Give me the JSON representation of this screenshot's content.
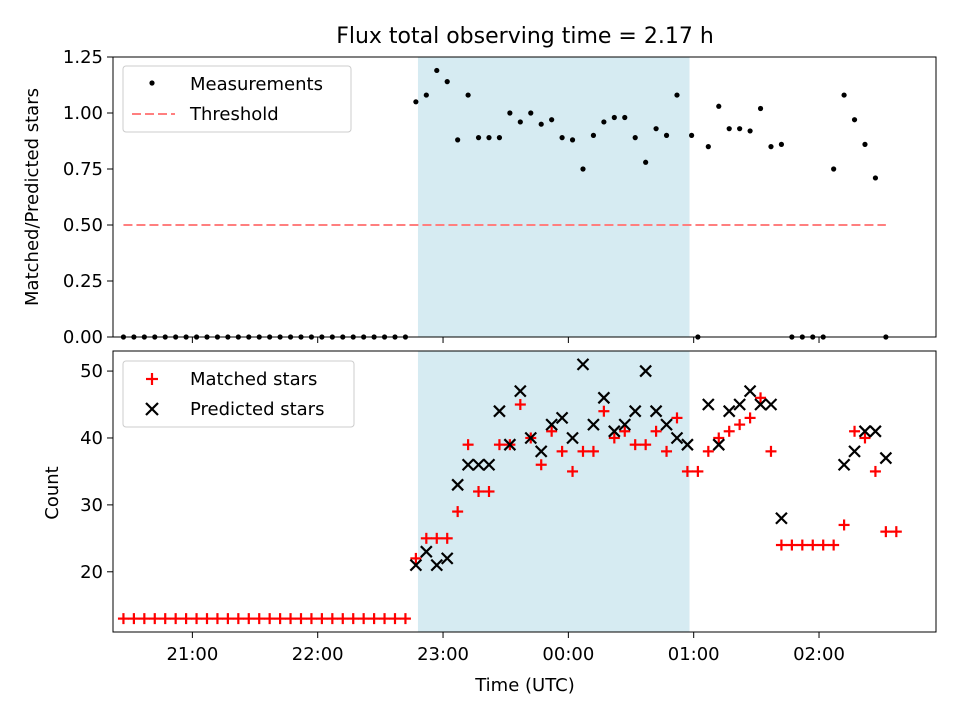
{
  "chart_data": [
    {
      "type": "scatter",
      "title": "Flux total observing time = 2.17 h",
      "xlabel": "",
      "ylabel": "Matched/Predicted stars",
      "x_axis": "time_utc",
      "xlim": [
        "20:22",
        "02:56"
      ],
      "ylim": [
        0,
        1.25
      ],
      "yticks": [
        "0.00",
        "0.25",
        "0.50",
        "0.75",
        "1.00",
        "1.25"
      ],
      "shaded_span": {
        "start": "22:48",
        "end": "00:58",
        "color": "#add8e6"
      },
      "legend": {
        "placement": "top-left",
        "entries": [
          "Measurements",
          "Threshold"
        ]
      },
      "series": [
        {
          "name": "Measurements",
          "style": "dots",
          "color": "#000000",
          "points": [
            [
              "20:27",
              0
            ],
            [
              "20:32",
              0
            ],
            [
              "20:37",
              0
            ],
            [
              "20:42",
              0
            ],
            [
              "20:47",
              0
            ],
            [
              "20:52",
              0
            ],
            [
              "20:57",
              0
            ],
            [
              "21:02",
              0
            ],
            [
              "21:07",
              0
            ],
            [
              "21:12",
              0
            ],
            [
              "21:17",
              0
            ],
            [
              "21:22",
              0
            ],
            [
              "21:27",
              0
            ],
            [
              "21:32",
              0
            ],
            [
              "21:37",
              0
            ],
            [
              "21:42",
              0
            ],
            [
              "21:47",
              0
            ],
            [
              "21:52",
              0
            ],
            [
              "21:57",
              0
            ],
            [
              "22:02",
              0
            ],
            [
              "22:07",
              0
            ],
            [
              "22:12",
              0
            ],
            [
              "22:17",
              0
            ],
            [
              "22:22",
              0
            ],
            [
              "22:27",
              0
            ],
            [
              "22:32",
              0
            ],
            [
              "22:37",
              0
            ],
            [
              "22:42",
              0
            ],
            [
              "22:47",
              1.05
            ],
            [
              "22:52",
              1.08
            ],
            [
              "22:57",
              1.19
            ],
            [
              "23:02",
              1.14
            ],
            [
              "23:07",
              0.88
            ],
            [
              "23:12",
              1.08
            ],
            [
              "23:17",
              0.89
            ],
            [
              "23:22",
              0.89
            ],
            [
              "23:27",
              0.89
            ],
            [
              "23:32",
              1.0
            ],
            [
              "23:37",
              0.96
            ],
            [
              "23:42",
              1.0
            ],
            [
              "23:47",
              0.95
            ],
            [
              "23:52",
              0.97
            ],
            [
              "23:57",
              0.89
            ],
            [
              "00:02",
              0.88
            ],
            [
              "00:07",
              0.75
            ],
            [
              "00:12",
              0.9
            ],
            [
              "00:17",
              0.96
            ],
            [
              "00:22",
              0.98
            ],
            [
              "00:27",
              0.98
            ],
            [
              "00:32",
              0.89
            ],
            [
              "00:37",
              0.78
            ],
            [
              "00:42",
              0.93
            ],
            [
              "00:47",
              0.9
            ],
            [
              "00:52",
              1.08
            ],
            [
              "00:59",
              0.9
            ],
            [
              "01:02",
              0
            ],
            [
              "01:07",
              0.85
            ],
            [
              "01:12",
              1.03
            ],
            [
              "01:17",
              0.93
            ],
            [
              "01:22",
              0.93
            ],
            [
              "01:27",
              0.92
            ],
            [
              "01:32",
              1.02
            ],
            [
              "01:37",
              0.85
            ],
            [
              "01:42",
              0.86
            ],
            [
              "01:47",
              0
            ],
            [
              "01:52",
              0
            ],
            [
              "01:57",
              0
            ],
            [
              "02:02",
              0
            ],
            [
              "02:07",
              0.75
            ],
            [
              "02:12",
              1.08
            ],
            [
              "02:17",
              0.97
            ],
            [
              "02:22",
              0.86
            ],
            [
              "02:27",
              0.71
            ],
            [
              "02:32",
              0
            ]
          ]
        },
        {
          "name": "Threshold",
          "style": "dashed-line",
          "color": "#ff7f7f",
          "points": [
            [
              "20:27",
              0.5
            ],
            [
              "02:32",
              0.5
            ]
          ]
        }
      ]
    },
    {
      "type": "scatter",
      "title": "",
      "xlabel": "Time (UTC)",
      "ylabel": "Count",
      "x_axis": "time_utc",
      "xlim": [
        "20:22",
        "02:56"
      ],
      "ylim": [
        11,
        53
      ],
      "yticks": [
        "20",
        "30",
        "40",
        "50"
      ],
      "xticks": [
        "21:00",
        "22:00",
        "23:00",
        "00:00",
        "01:00",
        "02:00"
      ],
      "shaded_span": {
        "start": "22:48",
        "end": "00:58",
        "color": "#add8e6"
      },
      "legend": {
        "placement": "top-left",
        "entries": [
          "Matched stars",
          "Predicted stars"
        ]
      },
      "series": [
        {
          "name": "Matched stars",
          "marker": "plus",
          "color": "#ff0000",
          "points": [
            [
              "20:27",
              13
            ],
            [
              "20:32",
              13
            ],
            [
              "20:37",
              13
            ],
            [
              "20:42",
              13
            ],
            [
              "20:47",
              13
            ],
            [
              "20:52",
              13
            ],
            [
              "20:57",
              13
            ],
            [
              "21:02",
              13
            ],
            [
              "21:07",
              13
            ],
            [
              "21:12",
              13
            ],
            [
              "21:17",
              13
            ],
            [
              "21:22",
              13
            ],
            [
              "21:27",
              13
            ],
            [
              "21:32",
              13
            ],
            [
              "21:37",
              13
            ],
            [
              "21:42",
              13
            ],
            [
              "21:47",
              13
            ],
            [
              "21:52",
              13
            ],
            [
              "21:57",
              13
            ],
            [
              "22:02",
              13
            ],
            [
              "22:07",
              13
            ],
            [
              "22:12",
              13
            ],
            [
              "22:17",
              13
            ],
            [
              "22:22",
              13
            ],
            [
              "22:27",
              13
            ],
            [
              "22:32",
              13
            ],
            [
              "22:37",
              13
            ],
            [
              "22:42",
              13
            ],
            [
              "22:47",
              22
            ],
            [
              "22:52",
              25
            ],
            [
              "22:57",
              25
            ],
            [
              "23:02",
              25
            ],
            [
              "23:07",
              29
            ],
            [
              "23:12",
              39
            ],
            [
              "23:17",
              32
            ],
            [
              "23:22",
              32
            ],
            [
              "23:27",
              39
            ],
            [
              "23:32",
              39
            ],
            [
              "23:37",
              45
            ],
            [
              "23:42",
              40
            ],
            [
              "23:47",
              36
            ],
            [
              "23:52",
              41
            ],
            [
              "23:57",
              38
            ],
            [
              "00:02",
              35
            ],
            [
              "00:07",
              38
            ],
            [
              "00:12",
              38
            ],
            [
              "00:17",
              44
            ],
            [
              "00:22",
              40
            ],
            [
              "00:27",
              41
            ],
            [
              "00:32",
              39
            ],
            [
              "00:37",
              39
            ],
            [
              "00:42",
              41
            ],
            [
              "00:47",
              38
            ],
            [
              "00:52",
              43
            ],
            [
              "00:57",
              35
            ],
            [
              "01:02",
              35
            ],
            [
              "01:07",
              38
            ],
            [
              "01:12",
              40
            ],
            [
              "01:17",
              41
            ],
            [
              "01:22",
              42
            ],
            [
              "01:27",
              43
            ],
            [
              "01:32",
              46
            ],
            [
              "01:37",
              38
            ],
            [
              "01:42",
              24
            ],
            [
              "01:47",
              24
            ],
            [
              "01:52",
              24
            ],
            [
              "01:57",
              24
            ],
            [
              "02:02",
              24
            ],
            [
              "02:07",
              24
            ],
            [
              "02:12",
              27
            ],
            [
              "02:17",
              41
            ],
            [
              "02:22",
              40
            ],
            [
              "02:27",
              35
            ],
            [
              "02:32",
              26
            ],
            [
              "02:37",
              26
            ]
          ]
        },
        {
          "name": "Predicted stars",
          "marker": "x",
          "color": "#000000",
          "points": [
            [
              "22:47",
              21
            ],
            [
              "22:52",
              23
            ],
            [
              "22:57",
              21
            ],
            [
              "23:02",
              22
            ],
            [
              "23:07",
              33
            ],
            [
              "23:12",
              36
            ],
            [
              "23:17",
              36
            ],
            [
              "23:22",
              36
            ],
            [
              "23:27",
              44
            ],
            [
              "23:32",
              39
            ],
            [
              "23:37",
              47
            ],
            [
              "23:42",
              40
            ],
            [
              "23:47",
              38
            ],
            [
              "23:52",
              42
            ],
            [
              "23:57",
              43
            ],
            [
              "00:02",
              40
            ],
            [
              "00:07",
              51
            ],
            [
              "00:12",
              42
            ],
            [
              "00:17",
              46
            ],
            [
              "00:22",
              41
            ],
            [
              "00:27",
              42
            ],
            [
              "00:32",
              44
            ],
            [
              "00:37",
              50
            ],
            [
              "00:42",
              44
            ],
            [
              "00:47",
              42
            ],
            [
              "00:52",
              40
            ],
            [
              "00:57",
              39
            ],
            [
              "01:07",
              45
            ],
            [
              "01:12",
              39
            ],
            [
              "01:17",
              44
            ],
            [
              "01:22",
              45
            ],
            [
              "01:27",
              47
            ],
            [
              "01:32",
              45
            ],
            [
              "01:37",
              45
            ],
            [
              "01:42",
              28
            ],
            [
              "02:12",
              36
            ],
            [
              "02:17",
              38
            ],
            [
              "02:22",
              41
            ],
            [
              "02:27",
              41
            ],
            [
              "02:32",
              37
            ]
          ]
        }
      ]
    }
  ]
}
